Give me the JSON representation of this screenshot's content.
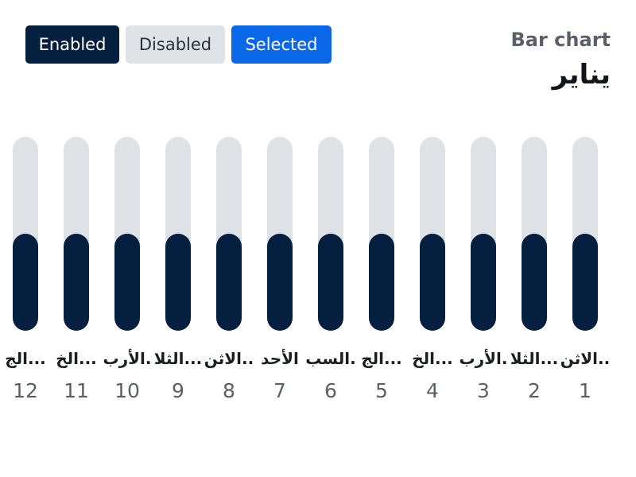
{
  "chips": {
    "enabled": "Enabled",
    "disabled": "Disabled",
    "selected": "Selected"
  },
  "header": {
    "label": "Bar chart",
    "title": "يناير"
  },
  "colors": {
    "bar_fill": "#05203f",
    "bar_track": "#dfe3e7",
    "chip_enabled": "#05203f",
    "chip_disabled": "#dfe3e7",
    "chip_selected": "#0a68e8"
  },
  "chart_data": {
    "type": "bar",
    "title": "يناير",
    "ylim": [
      0,
      1
    ],
    "categories": [
      "1",
      "2",
      "3",
      "4",
      "5",
      "6",
      "7",
      "8",
      "9",
      "10",
      "11",
      "12"
    ],
    "day_labels": [
      "الاثن..",
      "الثلا...",
      "الأرب.",
      "الخ...",
      "الج...",
      "السب.",
      "الأحد",
      "الاثن..",
      "الثلا...",
      "الأرب.",
      "الخ...",
      "الج..."
    ],
    "values": [
      0.5,
      0.5,
      0.5,
      0.5,
      0.5,
      0.5,
      0.5,
      0.5,
      0.5,
      0.5,
      0.5,
      0.5
    ],
    "grid": false,
    "legend": "none",
    "order": "right-to-left"
  }
}
